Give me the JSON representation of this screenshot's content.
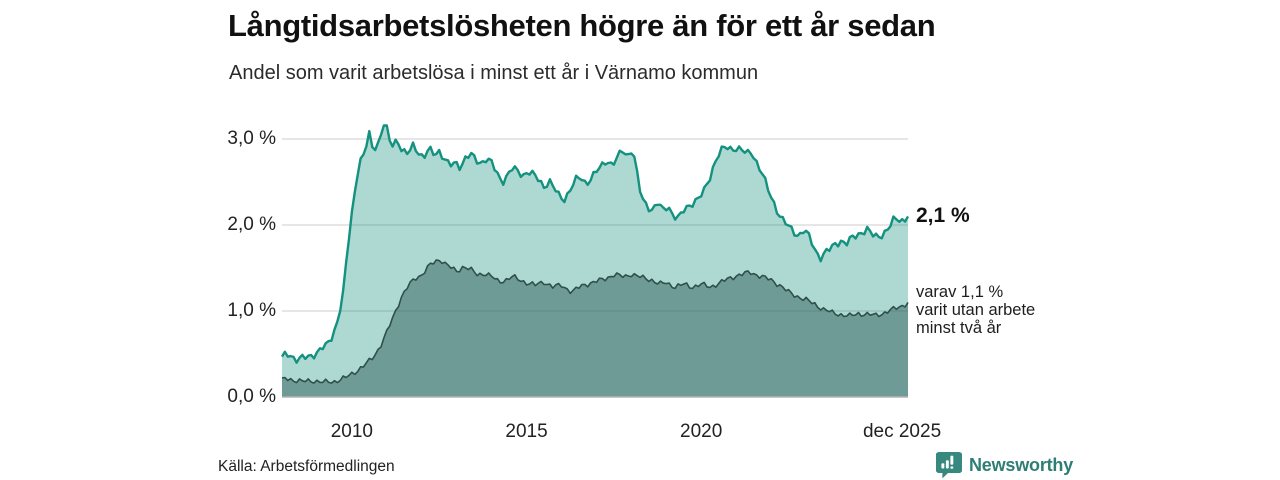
{
  "header": {
    "title": "Långtidsarbetslösheten högre än för ett år sedan",
    "subtitle": "Andel som varit arbetslösa i minst ett år i Värnamo kommun"
  },
  "chart_data": {
    "type": "area",
    "title": "Långtidsarbetslösheten högre än för ett år sedan",
    "subtitle": "Andel som varit arbetslösa i minst ett år i Värnamo kommun",
    "unit": "%",
    "grid": "horizontal",
    "legend_position": "right-edge-annotations",
    "x_range": [
      2008.0,
      2025.92
    ],
    "y_range": [
      0,
      3.3
    ],
    "x_ticks": [
      {
        "label": "2010",
        "year": 2010.0
      },
      {
        "label": "2015",
        "year": 2015.0
      },
      {
        "label": "2020",
        "year": 2020.0
      },
      {
        "label": "dec 2025",
        "year": 2025.75
      }
    ],
    "y_ticks": [
      {
        "label": "3,0 %",
        "value": 3.0
      },
      {
        "label": "2,0 %",
        "value": 2.0
      },
      {
        "label": "1,0 %",
        "value": 1.0
      },
      {
        "label": "0,0 %",
        "value": 0.0
      }
    ],
    "annotations": [
      {
        "text": "2,1 %",
        "value": 2.1,
        "series": "minst ett år"
      },
      {
        "text": "varav 1,1 %\nvarit utan arbete\nminst två år",
        "value": 1.1,
        "series": "minst två år"
      }
    ],
    "series": [
      {
        "name": "Arbetslösa minst ett år",
        "last_value": 2.1,
        "line_color": "#14917f",
        "fill_color": "rgba(20,145,127,0.35)",
        "line_width": 2.4,
        "wiggle": 0.032,
        "points": [
          [
            2008.0,
            0.47
          ],
          [
            2008.2,
            0.5
          ],
          [
            2008.4,
            0.44
          ],
          [
            2008.6,
            0.45
          ],
          [
            2008.8,
            0.47
          ],
          [
            2009.0,
            0.52
          ],
          [
            2009.15,
            0.57
          ],
          [
            2009.3,
            0.6
          ],
          [
            2009.45,
            0.72
          ],
          [
            2009.6,
            0.9
          ],
          [
            2009.75,
            1.2
          ],
          [
            2009.9,
            1.8
          ],
          [
            2010.05,
            2.3
          ],
          [
            2010.2,
            2.72
          ],
          [
            2010.35,
            2.82
          ],
          [
            2010.5,
            3.05
          ],
          [
            2010.6,
            2.88
          ],
          [
            2010.75,
            2.95
          ],
          [
            2010.95,
            3.22
          ],
          [
            2011.05,
            3.0
          ],
          [
            2011.15,
            2.92
          ],
          [
            2011.3,
            3.0
          ],
          [
            2011.45,
            2.86
          ],
          [
            2011.6,
            2.82
          ],
          [
            2011.75,
            2.92
          ],
          [
            2011.9,
            2.86
          ],
          [
            2012.05,
            2.78
          ],
          [
            2012.2,
            2.88
          ],
          [
            2012.35,
            2.82
          ],
          [
            2012.5,
            2.86
          ],
          [
            2012.65,
            2.78
          ],
          [
            2012.8,
            2.68
          ],
          [
            2012.95,
            2.72
          ],
          [
            2013.1,
            2.68
          ],
          [
            2013.25,
            2.78
          ],
          [
            2013.4,
            2.82
          ],
          [
            2013.55,
            2.75
          ],
          [
            2013.7,
            2.72
          ],
          [
            2013.85,
            2.78
          ],
          [
            2014.0,
            2.72
          ],
          [
            2014.15,
            2.6
          ],
          [
            2014.3,
            2.5
          ],
          [
            2014.45,
            2.58
          ],
          [
            2014.6,
            2.66
          ],
          [
            2014.75,
            2.62
          ],
          [
            2014.9,
            2.58
          ],
          [
            2015.05,
            2.63
          ],
          [
            2015.2,
            2.58
          ],
          [
            2015.35,
            2.52
          ],
          [
            2015.5,
            2.45
          ],
          [
            2015.65,
            2.52
          ],
          [
            2015.8,
            2.42
          ],
          [
            2015.95,
            2.32
          ],
          [
            2016.1,
            2.3
          ],
          [
            2016.25,
            2.42
          ],
          [
            2016.4,
            2.52
          ],
          [
            2016.55,
            2.55
          ],
          [
            2016.7,
            2.48
          ],
          [
            2016.85,
            2.55
          ],
          [
            2017.0,
            2.62
          ],
          [
            2017.15,
            2.68
          ],
          [
            2017.3,
            2.76
          ],
          [
            2017.45,
            2.7
          ],
          [
            2017.6,
            2.78
          ],
          [
            2017.75,
            2.86
          ],
          [
            2017.9,
            2.8
          ],
          [
            2018.0,
            2.88
          ],
          [
            2018.1,
            2.78
          ],
          [
            2018.2,
            2.5
          ],
          [
            2018.3,
            2.3
          ],
          [
            2018.45,
            2.22
          ],
          [
            2018.6,
            2.18
          ],
          [
            2018.75,
            2.26
          ],
          [
            2018.9,
            2.16
          ],
          [
            2019.05,
            2.22
          ],
          [
            2019.2,
            2.12
          ],
          [
            2019.35,
            2.08
          ],
          [
            2019.5,
            2.16
          ],
          [
            2019.65,
            2.22
          ],
          [
            2019.8,
            2.28
          ],
          [
            2019.95,
            2.32
          ],
          [
            2020.1,
            2.4
          ],
          [
            2020.25,
            2.55
          ],
          [
            2020.4,
            2.75
          ],
          [
            2020.55,
            2.86
          ],
          [
            2020.7,
            2.9
          ],
          [
            2020.85,
            2.88
          ],
          [
            2021.0,
            2.9
          ],
          [
            2021.15,
            2.88
          ],
          [
            2021.3,
            2.82
          ],
          [
            2021.45,
            2.85
          ],
          [
            2021.6,
            2.72
          ],
          [
            2021.75,
            2.6
          ],
          [
            2021.9,
            2.42
          ],
          [
            2022.05,
            2.28
          ],
          [
            2022.2,
            2.15
          ],
          [
            2022.35,
            2.05
          ],
          [
            2022.5,
            1.98
          ],
          [
            2022.65,
            1.92
          ],
          [
            2022.8,
            1.88
          ],
          [
            2022.95,
            1.95
          ],
          [
            2023.1,
            1.85
          ],
          [
            2023.25,
            1.72
          ],
          [
            2023.4,
            1.62
          ],
          [
            2023.55,
            1.68
          ],
          [
            2023.7,
            1.72
          ],
          [
            2023.85,
            1.78
          ],
          [
            2024.0,
            1.82
          ],
          [
            2024.15,
            1.78
          ],
          [
            2024.3,
            1.84
          ],
          [
            2024.45,
            1.88
          ],
          [
            2024.6,
            1.92
          ],
          [
            2024.75,
            1.95
          ],
          [
            2024.9,
            1.88
          ],
          [
            2025.05,
            1.86
          ],
          [
            2025.2,
            1.9
          ],
          [
            2025.35,
            1.95
          ],
          [
            2025.5,
            2.05
          ],
          [
            2025.65,
            2.07
          ],
          [
            2025.8,
            2.05
          ],
          [
            2025.92,
            2.1
          ]
        ]
      },
      {
        "name": "Arbetslösa minst två år",
        "last_value": 1.1,
        "line_color": "#2f4f4b",
        "fill_color": "rgba(49,94,90,0.5)",
        "line_width": 1.6,
        "wiggle": 0.022,
        "points": [
          [
            2008.0,
            0.22
          ],
          [
            2008.3,
            0.2
          ],
          [
            2008.6,
            0.18
          ],
          [
            2008.9,
            0.19
          ],
          [
            2009.2,
            0.17
          ],
          [
            2009.5,
            0.18
          ],
          [
            2009.8,
            0.22
          ],
          [
            2010.0,
            0.27
          ],
          [
            2010.2,
            0.32
          ],
          [
            2010.4,
            0.38
          ],
          [
            2010.6,
            0.46
          ],
          [
            2010.8,
            0.58
          ],
          [
            2011.0,
            0.75
          ],
          [
            2011.2,
            0.95
          ],
          [
            2011.4,
            1.15
          ],
          [
            2011.6,
            1.28
          ],
          [
            2011.8,
            1.38
          ],
          [
            2012.0,
            1.42
          ],
          [
            2012.2,
            1.52
          ],
          [
            2012.4,
            1.58
          ],
          [
            2012.55,
            1.6
          ],
          [
            2012.7,
            1.54
          ],
          [
            2012.85,
            1.5
          ],
          [
            2013.0,
            1.46
          ],
          [
            2013.2,
            1.52
          ],
          [
            2013.4,
            1.48
          ],
          [
            2013.6,
            1.42
          ],
          [
            2013.8,
            1.44
          ],
          [
            2014.0,
            1.4
          ],
          [
            2014.2,
            1.34
          ],
          [
            2014.4,
            1.36
          ],
          [
            2014.6,
            1.4
          ],
          [
            2014.8,
            1.36
          ],
          [
            2015.0,
            1.33
          ],
          [
            2015.25,
            1.3
          ],
          [
            2015.5,
            1.34
          ],
          [
            2015.75,
            1.28
          ],
          [
            2016.0,
            1.3
          ],
          [
            2016.3,
            1.22
          ],
          [
            2016.6,
            1.3
          ],
          [
            2016.9,
            1.33
          ],
          [
            2017.2,
            1.37
          ],
          [
            2017.5,
            1.42
          ],
          [
            2017.8,
            1.4
          ],
          [
            2018.0,
            1.43
          ],
          [
            2018.2,
            1.4
          ],
          [
            2018.4,
            1.38
          ],
          [
            2018.6,
            1.36
          ],
          [
            2018.8,
            1.31
          ],
          [
            2019.0,
            1.33
          ],
          [
            2019.25,
            1.28
          ],
          [
            2019.5,
            1.31
          ],
          [
            2019.75,
            1.28
          ],
          [
            2020.0,
            1.31
          ],
          [
            2020.25,
            1.28
          ],
          [
            2020.5,
            1.32
          ],
          [
            2020.75,
            1.37
          ],
          [
            2021.0,
            1.41
          ],
          [
            2021.2,
            1.43
          ],
          [
            2021.4,
            1.45
          ],
          [
            2021.6,
            1.42
          ],
          [
            2021.8,
            1.39
          ],
          [
            2022.0,
            1.36
          ],
          [
            2022.25,
            1.3
          ],
          [
            2022.5,
            1.22
          ],
          [
            2022.75,
            1.17
          ],
          [
            2023.0,
            1.13
          ],
          [
            2023.25,
            1.08
          ],
          [
            2023.5,
            1.02
          ],
          [
            2023.75,
            0.98
          ],
          [
            2024.0,
            0.96
          ],
          [
            2024.25,
            0.94
          ],
          [
            2024.5,
            0.97
          ],
          [
            2024.75,
            0.96
          ],
          [
            2025.0,
            0.95
          ],
          [
            2025.25,
            0.98
          ],
          [
            2025.5,
            1.02
          ],
          [
            2025.75,
            1.06
          ],
          [
            2025.92,
            1.1
          ]
        ]
      }
    ],
    "colors": {
      "gridline": "#d7d7d7",
      "baseline": "#b3b3b3",
      "accent_teal": "#14917f",
      "brand_teal": "#37897f"
    }
  },
  "footer": {
    "source": "Källa: Arbetsförmedlingen",
    "brand": "Newsworthy"
  }
}
